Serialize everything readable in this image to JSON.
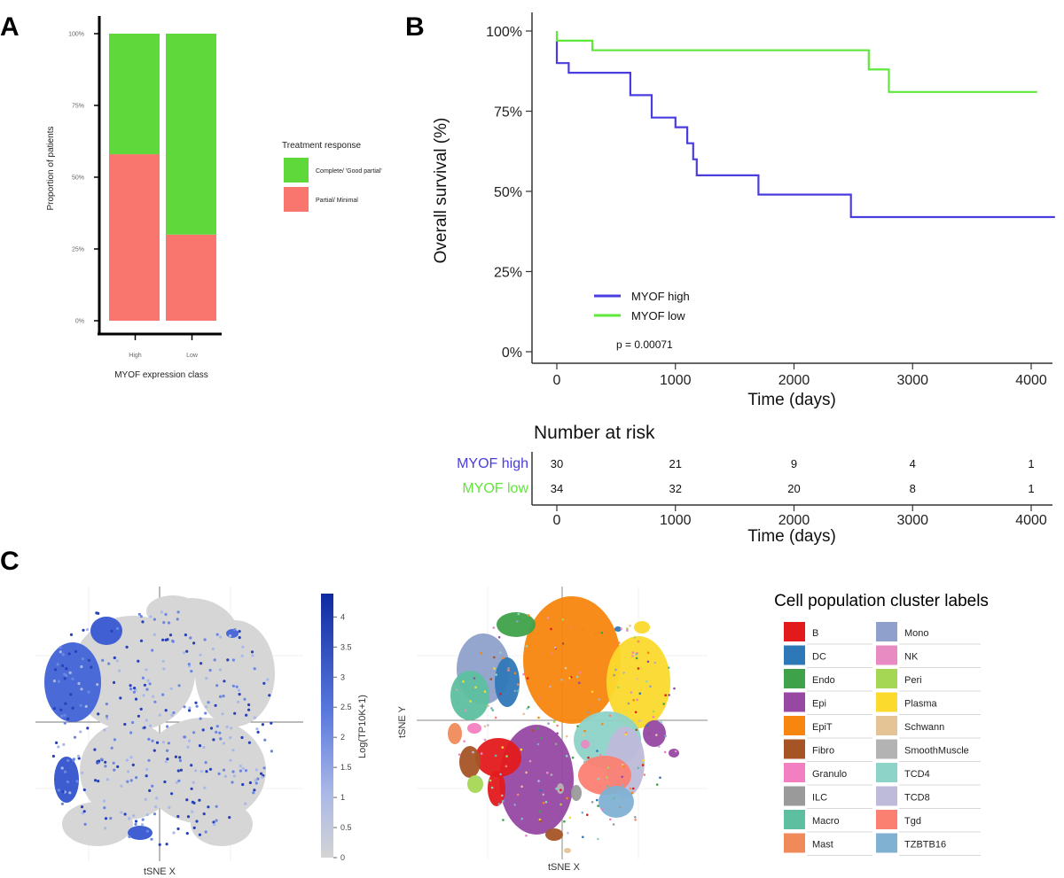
{
  "panel_labels": {
    "a": "A",
    "b": "B",
    "c": "C"
  },
  "chart_data": [
    {
      "panel": "A",
      "type": "bar",
      "stacked": true,
      "categories": [
        "High",
        "Low"
      ],
      "series": [
        {
          "name": "Partial/ Minimal",
          "color": "#f8766d",
          "values": [
            58,
            30
          ]
        },
        {
          "name": "Complete/ 'Good partial'",
          "color": "#5ed83b",
          "values": [
            42,
            70
          ]
        }
      ],
      "yticks": [
        "0%",
        "25%",
        "50%",
        "75%",
        "100%"
      ],
      "ytick_values": [
        0,
        25,
        50,
        75,
        100
      ],
      "ylim": [
        0,
        100
      ],
      "xlabel": "MYOF expression class",
      "ylabel": "Proportion of patients",
      "legend_title": "Treatment response",
      "legend_labels": [
        "Complete/ 'Good partial'",
        "Partial/ Minimal"
      ]
    },
    {
      "panel": "B",
      "type": "line",
      "subtype": "kaplan-meier",
      "xlabel": "Time (days)",
      "ylabel": "Overall survival (%)",
      "xlim": [
        -200,
        4200
      ],
      "ylim": [
        0,
        100
      ],
      "xticks": [
        0,
        1000,
        2000,
        3000,
        4000
      ],
      "yticks": [
        "0%",
        "25%",
        "50%",
        "75%",
        "100%"
      ],
      "ytick_values": [
        0,
        25,
        50,
        75,
        100
      ],
      "series": [
        {
          "name": "MYOF high",
          "color": "#4a3de0",
          "x": [
            0,
            0,
            100,
            100,
            620,
            620,
            800,
            800,
            1000,
            1000,
            1100,
            1100,
            1150,
            1150,
            1180,
            1180,
            1700,
            1700,
            2480,
            2480,
            4200
          ],
          "y": [
            97,
            90,
            90,
            87,
            87,
            80,
            80,
            73,
            73,
            70,
            70,
            65,
            65,
            60,
            60,
            55,
            55,
            49,
            49,
            42,
            42
          ]
        },
        {
          "name": "MYOF low",
          "color": "#5ee83a",
          "x": [
            0,
            0,
            300,
            300,
            2630,
            2630,
            2800,
            2800,
            4050
          ],
          "y": [
            100,
            97,
            97,
            94,
            94,
            88,
            88,
            81,
            81
          ]
        }
      ],
      "legend_labels": [
        "MYOF high",
        "MYOF low"
      ],
      "pvalue": "p = 0.00071",
      "risk_table": {
        "title": "Number at risk",
        "xlabel": "Time (days)",
        "times": [
          0,
          1000,
          2000,
          3000,
          4000
        ],
        "rows": [
          {
            "label": "MYOF high",
            "color": "#4a3de0",
            "values": [
              "30",
              "21",
              "9",
              "4",
              "1"
            ]
          },
          {
            "label": "MYOF low",
            "color": "#5ee83a",
            "values": [
              "34",
              "32",
              "20",
              "8",
              "1"
            ]
          }
        ]
      }
    },
    {
      "panel": "C-left",
      "type": "scatter",
      "subtype": "tsne-expression",
      "xlabel": "tSNE X",
      "colorbar_label": "Log(TP10K+1)",
      "colorbar_ticks": [
        "0",
        "0.5",
        "1",
        "1.5",
        "2",
        "2.5",
        "3",
        "3.5",
        "4"
      ],
      "colorbar_values": [
        0,
        0.5,
        1,
        1.5,
        2,
        2.5,
        3,
        3.5,
        4
      ]
    },
    {
      "panel": "C-right",
      "type": "scatter",
      "subtype": "tsne-clusters",
      "xlabel": "tSNE X",
      "ylabel": "tSNE Y",
      "legend_title": "Cell population cluster labels",
      "clusters": [
        {
          "name": "B",
          "color": "#e31a1c"
        },
        {
          "name": "DC",
          "color": "#2f78b8"
        },
        {
          "name": "Endo",
          "color": "#3fa24a"
        },
        {
          "name": "Epi",
          "color": "#9748a3"
        },
        {
          "name": "EpiT",
          "color": "#f7860e"
        },
        {
          "name": "Fibro",
          "color": "#a55425"
        },
        {
          "name": "Granulo",
          "color": "#f27fc0"
        },
        {
          "name": "ILC",
          "color": "#9a9a9a"
        },
        {
          "name": "Macro",
          "color": "#5dbf9f"
        },
        {
          "name": "Mast",
          "color": "#f08a5b"
        },
        {
          "name": "Mono",
          "color": "#8ea0cb"
        },
        {
          "name": "NK",
          "color": "#e88bc3"
        },
        {
          "name": "Peri",
          "color": "#a6d754"
        },
        {
          "name": "Plasma",
          "color": "#fbd92d"
        },
        {
          "name": "Schwann",
          "color": "#e4c494"
        },
        {
          "name": "SmoothMuscle",
          "color": "#b3b3b3"
        },
        {
          "name": "TCD4",
          "color": "#8dd3c7"
        },
        {
          "name": "TCD8",
          "color": "#bebada"
        },
        {
          "name": "Tgd",
          "color": "#fb8072"
        },
        {
          "name": "TZBTB16",
          "color": "#80b1d3"
        }
      ]
    }
  ]
}
